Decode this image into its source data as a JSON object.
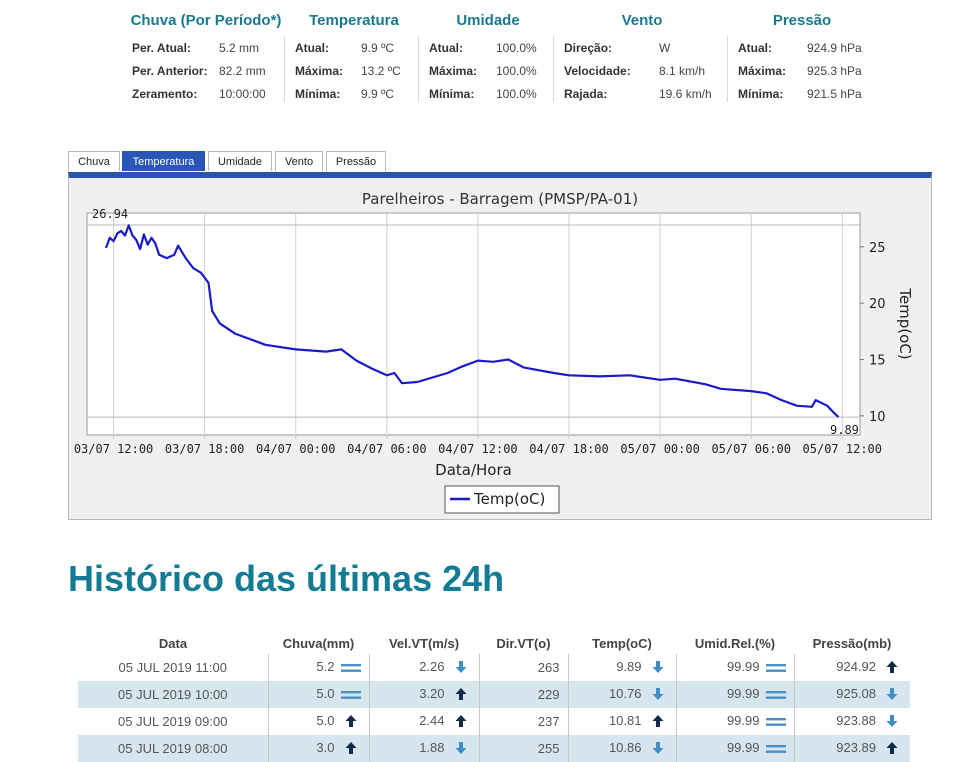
{
  "stats": {
    "chuva": {
      "title": "Chuva (Por Período*)",
      "rows": [
        {
          "label": "Per. Atual:",
          "value": "5.2 mm"
        },
        {
          "label": "Per. Anterior:",
          "value": "82.2 mm"
        },
        {
          "label": "Zeramento:",
          "value": "10:00:00"
        }
      ]
    },
    "temperatura": {
      "title": "Temperatura",
      "rows": [
        {
          "label": "Atual:",
          "value": "9.9 ºC"
        },
        {
          "label": "Máxima:",
          "value": "13.2 ºC"
        },
        {
          "label": "Mínima:",
          "value": "9.9 ºC"
        }
      ]
    },
    "umidade": {
      "title": "Umidade",
      "rows": [
        {
          "label": "Atual:",
          "value": "100.0%"
        },
        {
          "label": "Máxima:",
          "value": "100.0%"
        },
        {
          "label": "Mínima:",
          "value": "100.0%"
        }
      ]
    },
    "vento": {
      "title": "Vento",
      "rows": [
        {
          "label": "Direção:",
          "value": "W"
        },
        {
          "label": "Velocidade:",
          "value": "8.1 km/h"
        },
        {
          "label": "Rajada:",
          "value": "19.6 km/h"
        }
      ]
    },
    "pressao": {
      "title": "Pressão",
      "rows": [
        {
          "label": "Atual:",
          "value": "924.9 hPa"
        },
        {
          "label": "Máxima:",
          "value": "925.3 hPa"
        },
        {
          "label": "Mínima:",
          "value": "921.5 hPa"
        }
      ]
    }
  },
  "tabs": [
    {
      "label": "Chuva",
      "active": false
    },
    {
      "label": "Temperatura",
      "active": true
    },
    {
      "label": "Umidade",
      "active": false
    },
    {
      "label": "Vento",
      "active": false
    },
    {
      "label": "Pressão",
      "active": false
    }
  ],
  "colors": {
    "accent": "#147b95",
    "tab_active": "#2a56b8",
    "series": "#1a1ac8",
    "row_alt": "#d7e6ee"
  },
  "chart_data": {
    "type": "line",
    "title": "Parelheiros - Barragem (PMSP/PA-01)",
    "xlabel": "Data/Hora",
    "ylabel": "Temp(oC)",
    "xlim": [
      "2019-07-03T10:15",
      "2019-07-05T13:10"
    ],
    "ylim": [
      8.3,
      28.0
    ],
    "xticks": [
      {
        "t": "2019-07-03T12:00",
        "label": "03/07 12:00"
      },
      {
        "t": "2019-07-03T18:00",
        "label": "03/07 18:00"
      },
      {
        "t": "2019-07-04T00:00",
        "label": "04/07 00:00"
      },
      {
        "t": "2019-07-04T06:00",
        "label": "04/07 06:00"
      },
      {
        "t": "2019-07-04T12:00",
        "label": "04/07 12:00"
      },
      {
        "t": "2019-07-04T18:00",
        "label": "04/07 18:00"
      },
      {
        "t": "2019-07-05T00:00",
        "label": "05/07 00:00"
      },
      {
        "t": "2019-07-05T06:00",
        "label": "05/07 06:00"
      },
      {
        "t": "2019-07-05T12:00",
        "label": "05/07 12:00"
      }
    ],
    "yticks": [
      10,
      15,
      20,
      25
    ],
    "max_marker": {
      "value": 26.94,
      "label": "26.94"
    },
    "last_marker": {
      "value": 9.89,
      "label": "9.89"
    },
    "legend": "bottom",
    "series": [
      {
        "name": "Temp(oC)",
        "points": [
          [
            "2019-07-03T11:30",
            24.9
          ],
          [
            "2019-07-03T11:45",
            25.8
          ],
          [
            "2019-07-03T12:00",
            25.5
          ],
          [
            "2019-07-03T12:15",
            26.2
          ],
          [
            "2019-07-03T12:30",
            26.4
          ],
          [
            "2019-07-03T12:45",
            26.0
          ],
          [
            "2019-07-03T13:00",
            26.9
          ],
          [
            "2019-07-03T13:15",
            26.0
          ],
          [
            "2019-07-03T13:30",
            25.6
          ],
          [
            "2019-07-03T13:45",
            24.8
          ],
          [
            "2019-07-03T14:00",
            26.1
          ],
          [
            "2019-07-03T14:15",
            25.2
          ],
          [
            "2019-07-03T14:30",
            25.8
          ],
          [
            "2019-07-03T14:45",
            25.3
          ],
          [
            "2019-07-03T15:00",
            24.3
          ],
          [
            "2019-07-03T15:30",
            24.0
          ],
          [
            "2019-07-03T16:00",
            24.3
          ],
          [
            "2019-07-03T16:15",
            25.1
          ],
          [
            "2019-07-03T16:45",
            24.0
          ],
          [
            "2019-07-03T17:15",
            23.1
          ],
          [
            "2019-07-03T17:45",
            22.7
          ],
          [
            "2019-07-03T18:15",
            21.8
          ],
          [
            "2019-07-03T18:30",
            19.3
          ],
          [
            "2019-07-03T19:00",
            18.2
          ],
          [
            "2019-07-03T20:00",
            17.3
          ],
          [
            "2019-07-03T21:00",
            16.8
          ],
          [
            "2019-07-03T22:00",
            16.3
          ],
          [
            "2019-07-04T00:00",
            15.9
          ],
          [
            "2019-07-04T02:00",
            15.7
          ],
          [
            "2019-07-04T03:00",
            15.9
          ],
          [
            "2019-07-04T04:00",
            14.9
          ],
          [
            "2019-07-04T05:00",
            14.2
          ],
          [
            "2019-07-04T06:00",
            13.6
          ],
          [
            "2019-07-04T06:30",
            13.8
          ],
          [
            "2019-07-04T07:00",
            12.9
          ],
          [
            "2019-07-04T08:00",
            13.0
          ],
          [
            "2019-07-04T09:00",
            13.4
          ],
          [
            "2019-07-04T10:00",
            13.8
          ],
          [
            "2019-07-04T11:00",
            14.4
          ],
          [
            "2019-07-04T12:00",
            14.9
          ],
          [
            "2019-07-04T13:00",
            14.8
          ],
          [
            "2019-07-04T14:00",
            15.0
          ],
          [
            "2019-07-04T15:00",
            14.3
          ],
          [
            "2019-07-04T17:00",
            13.8
          ],
          [
            "2019-07-04T18:00",
            13.6
          ],
          [
            "2019-07-04T20:00",
            13.5
          ],
          [
            "2019-07-04T22:00",
            13.6
          ],
          [
            "2019-07-05T00:00",
            13.2
          ],
          [
            "2019-07-05T01:00",
            13.3
          ],
          [
            "2019-07-05T03:00",
            12.8
          ],
          [
            "2019-07-05T04:00",
            12.4
          ],
          [
            "2019-07-05T06:00",
            12.2
          ],
          [
            "2019-07-05T07:00",
            12.0
          ],
          [
            "2019-07-05T08:00",
            11.4
          ],
          [
            "2019-07-05T09:00",
            10.9
          ],
          [
            "2019-07-05T10:00",
            10.8
          ],
          [
            "2019-07-05T10:15",
            11.4
          ],
          [
            "2019-07-05T11:00",
            10.9
          ],
          [
            "2019-07-05T11:30",
            10.2
          ],
          [
            "2019-07-05T11:45",
            9.89
          ]
        ]
      }
    ]
  },
  "history": {
    "title": "Histórico das últimas 24h",
    "columns": [
      "Data",
      "Chuva(mm)",
      "Vel.VT(m/s)",
      "Dir.VT(o)",
      "Temp(oC)",
      "Umid.Rel.(%)",
      "Pressão(mb)"
    ],
    "rows": [
      {
        "data": "05 JUL 2019 11:00",
        "chuva": "5.2",
        "chuva_t": "equal",
        "vel": "2.26",
        "vel_t": "down",
        "dir": "263",
        "temp": "9.89",
        "temp_t": "down",
        "umid": "99.99",
        "umid_t": "equal",
        "press": "924.92",
        "press_t": "up"
      },
      {
        "data": "05 JUL 2019 10:00",
        "chuva": "5.0",
        "chuva_t": "equal",
        "vel": "3.20",
        "vel_t": "up",
        "dir": "229",
        "temp": "10.76",
        "temp_t": "down",
        "umid": "99.99",
        "umid_t": "equal",
        "press": "925.08",
        "press_t": "down"
      },
      {
        "data": "05 JUL 2019 09:00",
        "chuva": "5.0",
        "chuva_t": "up",
        "vel": "2.44",
        "vel_t": "up",
        "dir": "237",
        "temp": "10.81",
        "temp_t": "up",
        "umid": "99.99",
        "umid_t": "equal",
        "press": "923.88",
        "press_t": "down"
      },
      {
        "data": "05 JUL 2019 08:00",
        "chuva": "3.0",
        "chuva_t": "up",
        "vel": "1.88",
        "vel_t": "down",
        "dir": "255",
        "temp": "10.86",
        "temp_t": "down",
        "umid": "99.99",
        "umid_t": "equal",
        "press": "923.89",
        "press_t": "up"
      }
    ]
  }
}
